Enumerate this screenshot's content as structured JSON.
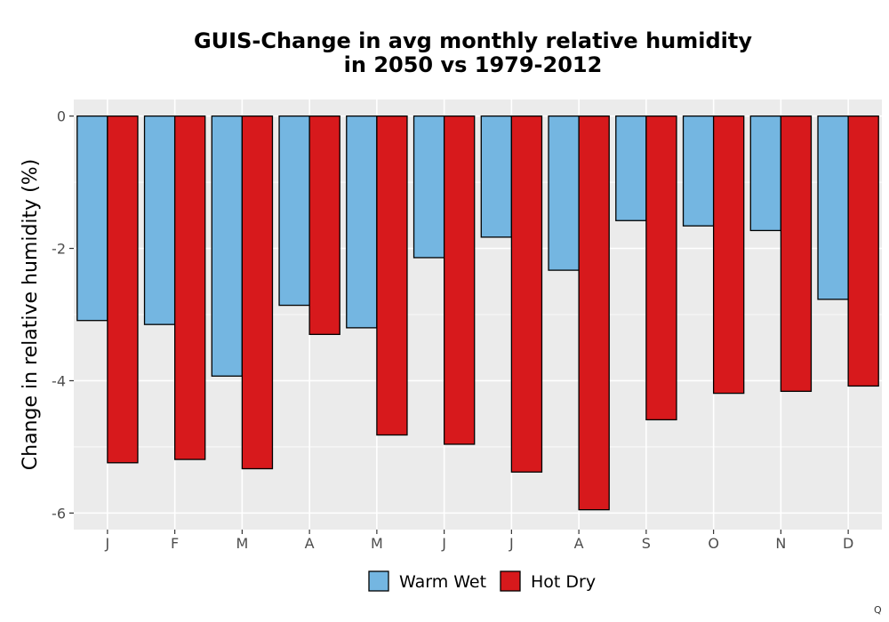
{
  "chart_data": {
    "type": "bar",
    "title_lines": [
      "GUIS-Change in avg monthly relative humidity",
      "in 2050 vs 1979-2012"
    ],
    "xlabel": "",
    "ylabel": "Change in relative humidity (%)",
    "categories": [
      "J",
      "F",
      "M",
      "A",
      "M",
      "J",
      "J",
      "A",
      "S",
      "O",
      "N",
      "D"
    ],
    "series": [
      {
        "name": "Warm Wet",
        "color": "#74b6e1",
        "values": [
          -3.09,
          -3.15,
          -3.93,
          -2.86,
          -3.2,
          -2.14,
          -1.83,
          -2.33,
          -1.58,
          -1.66,
          -1.73,
          -2.77
        ]
      },
      {
        "name": "Hot Dry",
        "color": "#d7191c",
        "values": [
          -5.24,
          -5.19,
          -5.33,
          -3.3,
          -4.82,
          -4.96,
          -5.38,
          -5.95,
          -4.59,
          -4.19,
          -4.16,
          -4.08
        ]
      }
    ],
    "ylim": [
      -6.25,
      0.25
    ],
    "yticks": [
      0,
      -2,
      -4,
      -6
    ],
    "ytick_labels": [
      "0",
      "-2",
      "-4",
      "-6"
    ],
    "grid": true,
    "legend_position": "bottom",
    "panel_color": "#ebebeb",
    "corner_mark": "Q"
  }
}
